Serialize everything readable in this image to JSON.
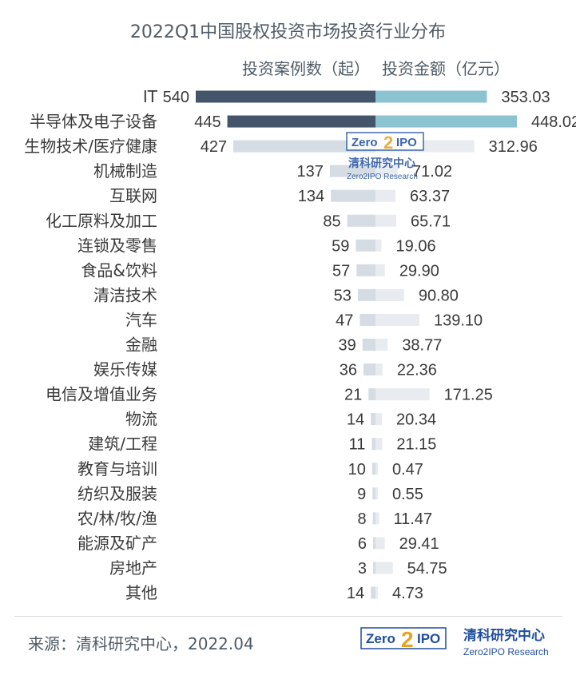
{
  "chart_data": {
    "type": "bar",
    "title": "2022Q1中国股权投资市场投资行业分布",
    "series": [
      {
        "name": "投资案例数（起）",
        "values": [
          540,
          445,
          427,
          137,
          134,
          85,
          59,
          57,
          53,
          47,
          39,
          36,
          21,
          14,
          11,
          10,
          9,
          8,
          6,
          3,
          14
        ],
        "labels": [
          "540",
          "445",
          "427",
          "137",
          "134",
          "85",
          "59",
          "57",
          "53",
          "47",
          "39",
          "36",
          "21",
          "14",
          "11",
          "10",
          "9",
          "8",
          "6",
          "3",
          "14"
        ]
      },
      {
        "name": "投资金额（亿元）",
        "values": [
          353.03,
          448.02,
          312.96,
          71.02,
          63.37,
          65.71,
          19.06,
          29.9,
          90.8,
          139.1,
          38.77,
          22.36,
          171.25,
          20.34,
          21.15,
          0.47,
          0.55,
          11.47,
          29.41,
          54.75,
          4.73
        ],
        "labels": [
          "353.03",
          "448.02",
          "312.96",
          "71.02",
          "63.37",
          "65.71",
          "19.06",
          "29.90",
          "90.80",
          "139.10",
          "38.77",
          "22.36",
          "171.25",
          "20.34",
          "21.15",
          "0.47",
          "0.55",
          "11.47",
          "29.41",
          "54.75",
          "4.73"
        ]
      }
    ],
    "categories": [
      "IT",
      "半导体及电子设备",
      "生物技术/医疗健康",
      "机械制造",
      "互联网",
      "化工原料及加工",
      "连锁及零售",
      "食品&饮料",
      "清洁技术",
      "汽车",
      "金融",
      "娱乐传媒",
      "电信及增值业务",
      "物流",
      "建筑/工程",
      "教育与培训",
      "纺织及服装",
      "农/林/牧/渔",
      "能源及矿产",
      "房地产",
      "其他"
    ],
    "colors": {
      "count_highlight": "#44546a",
      "count_normal": "#d6dce4",
      "amount_highlight": "#8bc3d1",
      "amount_normal": "#e8ecf1",
      "label_text": "#3a3a3a",
      "title_text": "#4f5b66"
    },
    "highlighted_rows": 2,
    "legend_placement": "top"
  },
  "footer": {
    "source": "来源：清科研究中心，2022.04",
    "logo_word": "Zero",
    "logo_digit": "2",
    "logo_word2": "IPO",
    "logo_cn": "清科研究中心",
    "logo_en": "Zero2IPO Research"
  }
}
